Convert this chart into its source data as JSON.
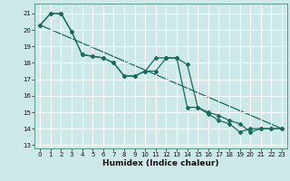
{
  "title": "",
  "xlabel": "Humidex (Indice chaleur)",
  "background_color": "#cce8e8",
  "grid_color": "#ffffff",
  "line_color": "#1a6b5a",
  "xlim": [
    -0.5,
    23.5
  ],
  "ylim": [
    12.8,
    21.6
  ],
  "yticks": [
    13,
    14,
    15,
    16,
    17,
    18,
    19,
    20,
    21
  ],
  "xticks": [
    0,
    1,
    2,
    3,
    4,
    5,
    6,
    7,
    8,
    9,
    10,
    11,
    12,
    13,
    14,
    15,
    16,
    17,
    18,
    19,
    20,
    21,
    22,
    23
  ],
  "series1_x": [
    0,
    1,
    2,
    3,
    4,
    5,
    6,
    7,
    8,
    9,
    10,
    11,
    12,
    13,
    14,
    15,
    16,
    17,
    18,
    19,
    20,
    21,
    22,
    23
  ],
  "series1_y": [
    20.3,
    21.0,
    21.0,
    19.9,
    18.5,
    18.4,
    18.3,
    18.0,
    17.2,
    17.2,
    17.5,
    17.5,
    18.3,
    18.3,
    17.9,
    15.3,
    15.0,
    14.8,
    14.5,
    14.3,
    13.8,
    14.0,
    14.0,
    14.0
  ],
  "series2_x": [
    0,
    1,
    2,
    3,
    4,
    5,
    6,
    7,
    8,
    9,
    10,
    11,
    12,
    13,
    14,
    15,
    16,
    17,
    18,
    19,
    20,
    21,
    22,
    23
  ],
  "series2_y": [
    20.3,
    21.0,
    21.0,
    19.9,
    18.5,
    18.4,
    18.3,
    18.0,
    17.2,
    17.2,
    17.5,
    18.3,
    18.3,
    18.3,
    15.3,
    15.3,
    14.9,
    14.5,
    14.3,
    13.8,
    14.0,
    14.0,
    14.0,
    14.0
  ],
  "series3_x": [
    0,
    23
  ],
  "series3_y": [
    20.3,
    14.0
  ],
  "xlabel_fontsize": 6.5,
  "tick_fontsize": 5.0
}
